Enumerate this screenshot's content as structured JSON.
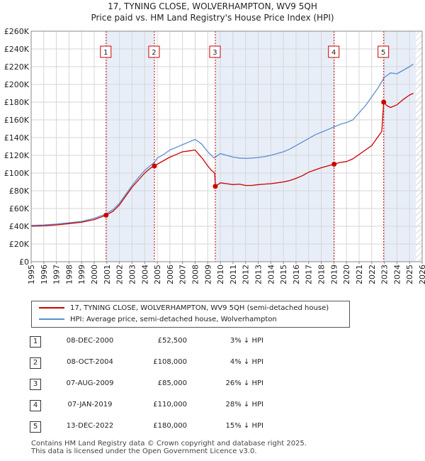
{
  "chart_data": {
    "type": "line",
    "title": "17, TYNING CLOSE, WOLVERHAMPTON, WV9 5QH",
    "subtitle": "Price paid vs. HM Land Registry's House Price Index (HPI)",
    "xlabel": "",
    "ylabel": "",
    "xlim": [
      1995,
      2026
    ],
    "ylim": [
      0,
      260000
    ],
    "x_ticks": [
      "1995",
      "1996",
      "1997",
      "1998",
      "1999",
      "2000",
      "2001",
      "2002",
      "2003",
      "2004",
      "2005",
      "2006",
      "2007",
      "2008",
      "2009",
      "2010",
      "2011",
      "2012",
      "2013",
      "2014",
      "2015",
      "2016",
      "2017",
      "2018",
      "2019",
      "2020",
      "2021",
      "2022",
      "2023",
      "2024",
      "2025",
      "2026"
    ],
    "y_ticks": [
      {
        "value": 0,
        "label": "£0"
      },
      {
        "value": 20000,
        "label": "£20K"
      },
      {
        "value": 40000,
        "label": "£40K"
      },
      {
        "value": 60000,
        "label": "£60K"
      },
      {
        "value": 80000,
        "label": "£80K"
      },
      {
        "value": 100000,
        "label": "£100K"
      },
      {
        "value": 120000,
        "label": "£120K"
      },
      {
        "value": 140000,
        "label": "£140K"
      },
      {
        "value": 160000,
        "label": "£160K"
      },
      {
        "value": 180000,
        "label": "£180K"
      },
      {
        "value": 200000,
        "label": "£200K"
      },
      {
        "value": 220000,
        "label": "£220K"
      },
      {
        "value": 240000,
        "label": "£240K"
      },
      {
        "value": 260000,
        "label": "£260K"
      }
    ],
    "grid": true,
    "shaded_ranges": [
      [
        2000.94,
        2004.77
      ],
      [
        2009.6,
        2019.02
      ],
      [
        2022.95,
        2025.5
      ]
    ],
    "hatched_range": [
      2025.5,
      2026
    ],
    "series": [
      {
        "name": "17, TYNING CLOSE, WOLVERHAMPTON, WV9 5QH (semi-detached house)",
        "color": "#cc0000",
        "x": [
          1995.0,
          1996.0,
          1997.0,
          1998.0,
          1999.0,
          2000.0,
          2000.94,
          2001.5,
          2002.0,
          2002.5,
          2003.0,
          2003.5,
          2004.0,
          2004.5,
          2004.77,
          2005.0,
          2005.5,
          2006.0,
          2006.5,
          2007.0,
          2007.5,
          2008.0,
          2008.3,
          2008.6,
          2009.0,
          2009.3,
          2009.55,
          2009.6,
          2010.0,
          2010.5,
          2011.0,
          2011.5,
          2012.0,
          2012.5,
          2013.0,
          2013.5,
          2014.0,
          2014.5,
          2015.0,
          2015.5,
          2016.0,
          2016.5,
          2017.0,
          2017.5,
          2018.0,
          2018.5,
          2019.02,
          2019.5,
          2020.0,
          2020.5,
          2021.0,
          2021.5,
          2022.0,
          2022.5,
          2022.8,
          2022.95,
          2023.2,
          2023.5,
          2024.0,
          2024.5,
          2025.0,
          2025.3
        ],
        "values": [
          40000,
          40500,
          41500,
          43000,
          44500,
          47500,
          52500,
          57000,
          64000,
          74000,
          84000,
          92000,
          100000,
          106000,
          108000,
          110000,
          114000,
          118000,
          121000,
          124000,
          125000,
          126000,
          121000,
          116000,
          108000,
          103000,
          100000,
          85000,
          89000,
          88000,
          87000,
          87500,
          86000,
          86000,
          87000,
          87500,
          88000,
          89000,
          90000,
          91500,
          94000,
          97000,
          101000,
          103500,
          106000,
          108000,
          110000,
          112000,
          113000,
          116000,
          121000,
          126000,
          131000,
          141000,
          147000,
          180000,
          176000,
          174000,
          177000,
          183000,
          188000,
          190000
        ]
      },
      {
        "name": "HPI: Average price, semi-detached house, Wolverhampton",
        "color": "#5b8fd0",
        "x": [
          1995.0,
          1996.0,
          1997.0,
          1998.0,
          1999.0,
          2000.0,
          2000.94,
          2001.5,
          2002.0,
          2002.5,
          2003.0,
          2003.5,
          2004.0,
          2004.5,
          2004.77,
          2005.0,
          2005.5,
          2006.0,
          2006.5,
          2007.0,
          2007.5,
          2008.0,
          2008.5,
          2009.0,
          2009.5,
          2010.0,
          2010.5,
          2011.0,
          2011.5,
          2012.0,
          2012.5,
          2013.0,
          2013.5,
          2014.0,
          2014.5,
          2015.0,
          2015.5,
          2016.0,
          2016.5,
          2017.0,
          2017.5,
          2018.0,
          2018.5,
          2019.0,
          2019.5,
          2020.0,
          2020.5,
          2021.0,
          2021.5,
          2022.0,
          2022.5,
          2023.0,
          2023.5,
          2024.0,
          2024.5,
          2025.0,
          2025.3
        ],
        "values": [
          41000,
          41500,
          42500,
          44000,
          45500,
          49000,
          54000,
          59000,
          66000,
          76000,
          86000,
          95000,
          103000,
          109000,
          112000,
          117000,
          121000,
          126000,
          129000,
          132000,
          135000,
          138000,
          133000,
          124000,
          117000,
          122000,
          120000,
          118000,
          117000,
          116500,
          117000,
          117500,
          118500,
          120000,
          122000,
          124000,
          127000,
          131000,
          135000,
          139000,
          143000,
          146000,
          149000,
          152000,
          155000,
          157000,
          160000,
          168000,
          176000,
          186000,
          196000,
          208000,
          213000,
          212000,
          216000,
          220000,
          223000
        ]
      }
    ],
    "transactions": [
      {
        "num": "1",
        "x": 2000.94,
        "value": 52500
      },
      {
        "num": "2",
        "x": 2004.77,
        "value": 108000
      },
      {
        "num": "3",
        "x": 2009.6,
        "value": 85000
      },
      {
        "num": "4",
        "x": 2019.02,
        "value": 110000
      },
      {
        "num": "5",
        "x": 2022.95,
        "value": 180000
      }
    ]
  },
  "title_line1": "17, TYNING CLOSE, WOLVERHAMPTON, WV9 5QH",
  "title_line2": "Price paid vs. HM Land Registry's House Price Index (HPI)",
  "legend": {
    "property_label": "17, TYNING CLOSE, WOLVERHAMPTON, WV9 5QH (semi-detached house)",
    "hpi_label": "HPI: Average price, semi-detached house, Wolverhampton"
  },
  "table": [
    {
      "num": "1",
      "date": "08-DEC-2000",
      "price": "£52,500",
      "pct": "3% ↓ HPI"
    },
    {
      "num": "2",
      "date": "08-OCT-2004",
      "price": "£108,000",
      "pct": "4% ↓ HPI"
    },
    {
      "num": "3",
      "date": "07-AUG-2009",
      "price": "£85,000",
      "pct": "26% ↓ HPI"
    },
    {
      "num": "4",
      "date": "07-JAN-2019",
      "price": "£110,000",
      "pct": "28% ↓ HPI"
    },
    {
      "num": "5",
      "date": "13-DEC-2022",
      "price": "£180,000",
      "pct": "15% ↓ HPI"
    }
  ],
  "footer_line1": "Contains HM Land Registry data © Crown copyright and database right 2025.",
  "footer_line2": "This data is licensed under the Open Government Licence v3.0.",
  "colors": {
    "property": "#cc0000",
    "hpi": "#5b8fd0",
    "shade": "#e8eef8",
    "grid": "#d6d6d6"
  }
}
